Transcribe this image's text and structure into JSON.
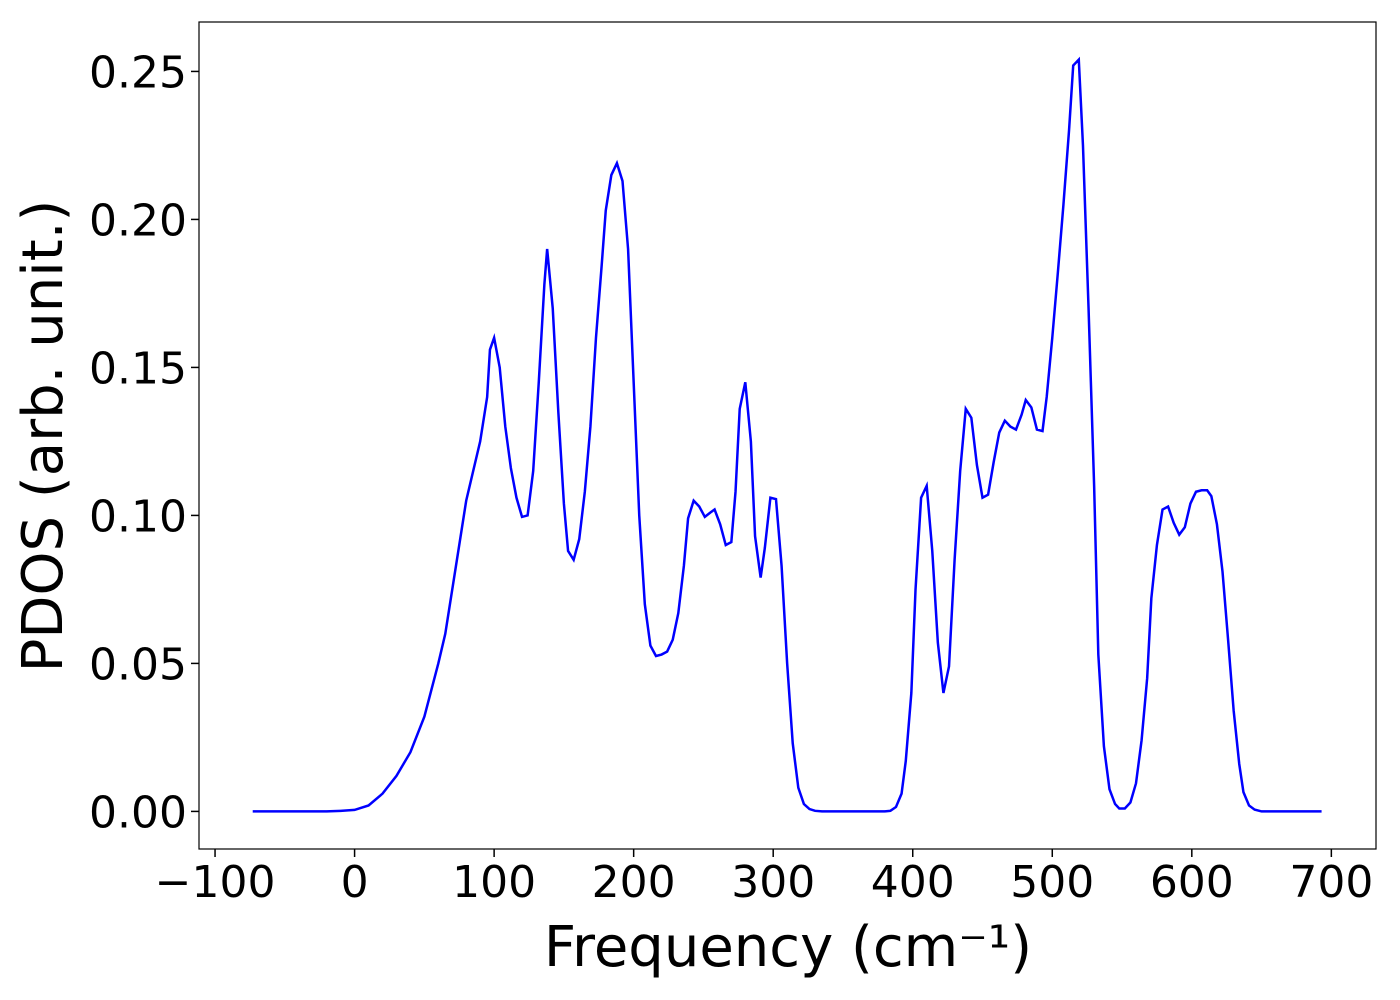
{
  "chart_data": {
    "type": "line",
    "xlabel": "Frequency (cm⁻¹)",
    "ylabel": "PDOS (arb. unit.)",
    "xlim": [
      -111.5,
      732
    ],
    "ylim": [
      -0.0127,
      0.2667
    ],
    "xticks": [
      {
        "value": -100,
        "label": "−100"
      },
      0,
      100,
      200,
      300,
      400,
      500,
      600,
      700
    ],
    "yticks": [
      {
        "value": 0,
        "label": "0.00"
      },
      {
        "value": 0.05,
        "label": "0.05"
      },
      {
        "value": 0.1,
        "label": "0.10"
      },
      {
        "value": 0.15,
        "label": "0.15"
      },
      {
        "value": 0.2,
        "label": "0.20"
      },
      {
        "value": 0.25,
        "label": "0.25"
      }
    ],
    "x": [
      -73,
      -60,
      -40,
      -20,
      -10,
      0,
      10,
      20,
      30,
      40,
      50,
      60,
      65,
      70,
      75,
      80,
      85,
      90,
      95,
      97,
      100,
      104,
      108,
      112,
      116,
      120,
      124,
      128,
      132,
      136,
      138,
      142,
      146,
      150,
      153,
      157,
      161,
      165,
      169,
      173,
      177,
      180,
      184,
      188,
      192,
      196,
      200,
      204,
      208,
      212,
      216,
      220,
      224,
      228,
      232,
      236,
      239,
      243,
      247,
      251,
      255,
      258,
      262,
      266,
      270,
      273,
      276,
      280,
      284,
      287,
      291,
      294,
      298,
      302,
      306,
      310,
      314,
      318,
      322,
      326,
      330,
      335,
      350,
      365,
      380,
      384,
      388,
      392,
      395,
      399,
      402,
      406,
      410,
      414,
      418,
      422,
      426,
      430,
      434,
      438,
      442,
      446,
      450,
      454,
      458,
      462,
      466,
      470,
      474,
      478,
      481,
      485,
      489,
      493,
      496,
      500,
      504,
      508,
      512,
      515,
      519,
      522,
      526,
      530,
      533,
      537,
      541,
      545,
      548,
      552,
      556,
      560,
      564,
      568,
      571,
      575,
      579,
      583,
      587,
      591,
      595,
      599,
      603,
      607,
      611,
      614,
      618,
      622,
      626,
      630,
      634,
      637,
      641,
      645,
      650,
      670,
      693
    ],
    "series": [
      {
        "name": "PDOS",
        "color": "#0000ff",
        "values": [
          0,
          0,
          0,
          0,
          0.0002,
          0.0005,
          0.002,
          0.006,
          0.012,
          0.02,
          0.032,
          0.05,
          0.06,
          0.075,
          0.09,
          0.105,
          0.115,
          0.125,
          0.14,
          0.156,
          0.16,
          0.15,
          0.13,
          0.116,
          0.106,
          0.0995,
          0.1,
          0.115,
          0.145,
          0.178,
          0.19,
          0.17,
          0.135,
          0.104,
          0.088,
          0.085,
          0.092,
          0.108,
          0.13,
          0.16,
          0.184,
          0.203,
          0.215,
          0.219,
          0.213,
          0.19,
          0.145,
          0.1,
          0.07,
          0.056,
          0.0525,
          0.053,
          0.054,
          0.058,
          0.067,
          0.083,
          0.099,
          0.105,
          0.103,
          0.0995,
          0.101,
          0.102,
          0.097,
          0.09,
          0.091,
          0.108,
          0.136,
          0.145,
          0.125,
          0.093,
          0.079,
          0.089,
          0.106,
          0.1055,
          0.083,
          0.05,
          0.023,
          0.008,
          0.0025,
          0.0008,
          0.0002,
          0,
          0,
          0,
          0,
          0.0002,
          0.0015,
          0.006,
          0.017,
          0.04,
          0.075,
          0.106,
          0.11,
          0.088,
          0.057,
          0.04,
          0.049,
          0.085,
          0.115,
          0.136,
          0.133,
          0.117,
          0.106,
          0.107,
          0.118,
          0.128,
          0.132,
          0.13,
          0.129,
          0.134,
          0.139,
          0.1365,
          0.129,
          0.1285,
          0.14,
          0.16,
          0.182,
          0.205,
          0.23,
          0.252,
          0.254,
          0.225,
          0.17,
          0.11,
          0.053,
          0.022,
          0.0075,
          0.0025,
          0.001,
          0.001,
          0.003,
          0.0095,
          0.024,
          0.045,
          0.072,
          0.09,
          0.102,
          0.103,
          0.0975,
          0.0935,
          0.096,
          0.104,
          0.108,
          0.1085,
          0.1085,
          0.1065,
          0.097,
          0.081,
          0.058,
          0.034,
          0.016,
          0.0065,
          0.002,
          0.0006,
          0,
          0,
          0
        ]
      }
    ]
  }
}
